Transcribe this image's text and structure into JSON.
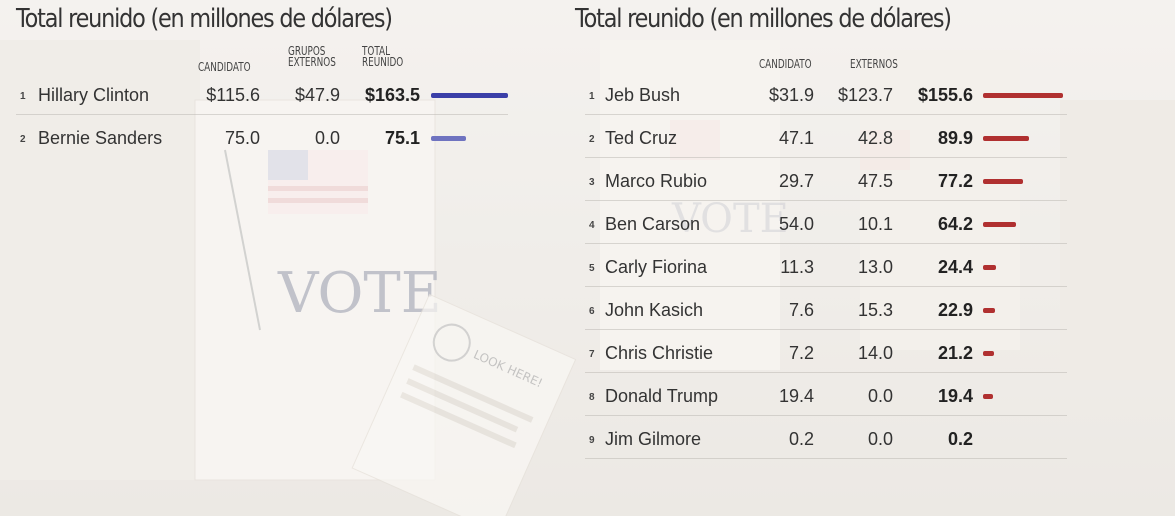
{
  "chart_data": [
    {
      "type": "table",
      "title": "Total reunido (en millones de dólares)",
      "columns": [
        "CANDIDATO",
        "GRUPOS EXTERNOS",
        "TOTAL REUNIDO"
      ],
      "bar_color": "#3b3fa8",
      "bar_color_light": "#6f73c0",
      "max_total": 163.5,
      "rows": [
        {
          "rank": "1",
          "name": "Hillary Clinton",
          "candidato": "$115.6",
          "externos": "$47.9",
          "total": "$163.5",
          "value": 163.5
        },
        {
          "rank": "2",
          "name": "Bernie Sanders",
          "candidato": "75.0",
          "externos": "0.0",
          "total": "75.1",
          "value": 75.1
        }
      ]
    },
    {
      "type": "table",
      "title": "Total reunido (en millones de dólares)",
      "columns": [
        "CANDIDATO",
        "EXTERNOS"
      ],
      "bar_color": "#b03030",
      "bar_color_light": "#d05050",
      "max_total": 155.6,
      "rows": [
        {
          "rank": "1",
          "name": "Jeb Bush",
          "candidato": "$31.9",
          "externos": "$123.7",
          "total": "$155.6",
          "value": 155.6
        },
        {
          "rank": "2",
          "name": "Ted Cruz",
          "candidato": "47.1",
          "externos": "42.8",
          "total": "89.9",
          "value": 89.9
        },
        {
          "rank": "3",
          "name": "Marco Rubio",
          "candidato": "29.7",
          "externos": "47.5",
          "total": "77.2",
          "value": 77.2
        },
        {
          "rank": "4",
          "name": "Ben Carson",
          "candidato": "54.0",
          "externos": "10.1",
          "total": "64.2",
          "value": 64.2
        },
        {
          "rank": "5",
          "name": "Carly Fiorina",
          "candidato": "11.3",
          "externos": "13.0",
          "total": "24.4",
          "value": 24.4
        },
        {
          "rank": "6",
          "name": "John Kasich",
          "candidato": "7.6",
          "externos": "15.3",
          "total": "22.9",
          "value": 22.9
        },
        {
          "rank": "7",
          "name": "Chris Christie",
          "candidato": "7.2",
          "externos": "14.0",
          "total": "21.2",
          "value": 21.2
        },
        {
          "rank": "8",
          "name": "Donald Trump",
          "candidato": "19.4",
          "externos": "0.0",
          "total": "19.4",
          "value": 19.4
        },
        {
          "rank": "9",
          "name": "Jim Gilmore",
          "candidato": "0.2",
          "externos": "0.0",
          "total": "0.2",
          "value": 0.2
        }
      ]
    }
  ],
  "background": {
    "sign_text": "VOTE",
    "flyer_text": "LOOK HERE!"
  }
}
